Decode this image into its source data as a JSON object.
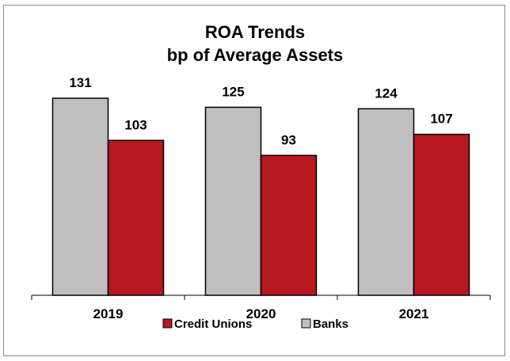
{
  "chart_data": {
    "type": "bar",
    "title_lines": [
      "ROA Trends",
      "bp of Average Assets"
    ],
    "categories": [
      "2019",
      "2020",
      "2021"
    ],
    "series": [
      {
        "name": "Banks",
        "values": [
          131,
          125,
          124
        ],
        "color": "#bfbfbf"
      },
      {
        "name": "Credit Unions",
        "values": [
          103,
          93,
          107
        ],
        "color": "#b5191f"
      }
    ],
    "legend_order": [
      "Credit Unions",
      "Banks"
    ],
    "legend_position": "bottom",
    "ylim": [
      0,
      150
    ],
    "grid": false,
    "data_labels": true
  }
}
